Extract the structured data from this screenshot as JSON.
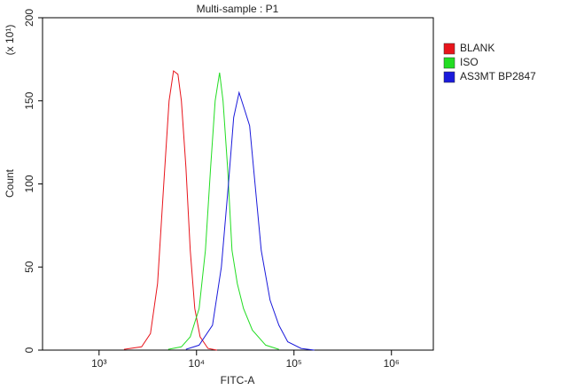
{
  "chart_data": {
    "type": "line",
    "title": "Multi-sample : P1",
    "x_label": "FITC-A",
    "y_label": "Count",
    "y_multiplier": "(x 10¹)",
    "log_x": true,
    "xlim": [
      263,
      2690000
    ],
    "xticks": [
      {
        "value": 1000,
        "label": "10³"
      },
      {
        "value": 10000,
        "label": "10⁴"
      },
      {
        "value": 100000,
        "label": "10⁵"
      },
      {
        "value": 1000000,
        "label": "10⁶"
      }
    ],
    "ylim": [
      0,
      200
    ],
    "yticks": [
      0,
      50,
      100,
      150,
      200
    ],
    "series": [
      {
        "name": "BLANK",
        "color": "#e8141b",
        "x": [
          1800,
          2730,
          3365,
          3980,
          4610,
          5230,
          5800,
          6440,
          7000,
          7780,
          8630,
          9590,
          10870,
          13120,
          16180
        ],
        "values": [
          0.5,
          2,
          10,
          40,
          100,
          150,
          168,
          166,
          150,
          110,
          60,
          25,
          8,
          1,
          0
        ]
      },
      {
        "name": "ISO",
        "color": "#22dd22",
        "x": [
          5120,
          7000,
          8630,
          10640,
          12330,
          13970,
          15520,
          17230,
          18730,
          20810,
          23110,
          26200,
          30320,
          37400,
          51170,
          70000
        ],
        "values": [
          0.5,
          2,
          8,
          25,
          60,
          110,
          150,
          167,
          150,
          110,
          60,
          40,
          25,
          12,
          3,
          0.5
        ]
      },
      {
        "name": "AS3MT BP2847",
        "color": "#1a1adb",
        "x": [
          7780,
          10640,
          14590,
          17980,
          21250,
          24080,
          27310,
          30960,
          35100,
          39810,
          46100,
          56870,
          70000,
          86300,
          118300,
          161800
        ],
        "values": [
          0.5,
          3,
          15,
          50,
          100,
          140,
          155,
          145,
          135,
          100,
          60,
          30,
          15,
          5,
          1,
          0
        ]
      }
    ]
  }
}
